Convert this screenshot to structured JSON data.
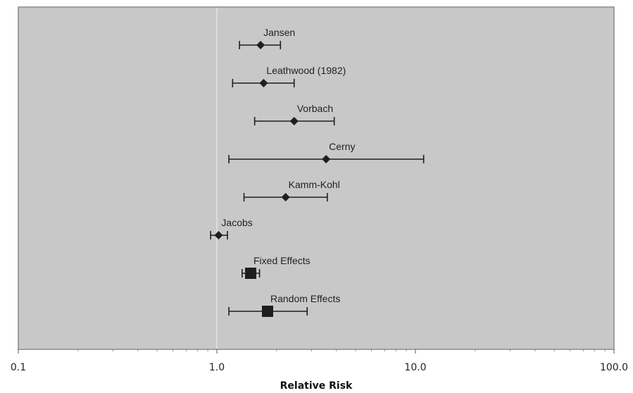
{
  "chart_data": {
    "type": "scatter",
    "subtype": "forest-plot",
    "x_scale": "log",
    "xlim": [
      0.1,
      100
    ],
    "xlabel": "Relative Risk",
    "ylabel": "",
    "title": "",
    "x_ticks": [
      {
        "value": 0.1,
        "label": "0.1"
      },
      {
        "value": 1,
        "label": "1.0"
      },
      {
        "value": 10,
        "label": "10.0"
      },
      {
        "value": 100,
        "label": "100.0"
      }
    ],
    "reference_line": 1.0,
    "studies": [
      {
        "label": "Jansen",
        "rr": 1.66,
        "ci_low": 1.3,
        "ci_high": 2.09,
        "marker": "diamond"
      },
      {
        "label": "Leathwood (1982)",
        "rr": 1.72,
        "ci_low": 1.2,
        "ci_high": 2.45,
        "marker": "diamond"
      },
      {
        "label": "Vorbach",
        "rr": 2.45,
        "ci_low": 1.55,
        "ci_high": 3.9,
        "marker": "diamond"
      },
      {
        "label": "Cerny",
        "rr": 3.55,
        "ci_low": 1.15,
        "ci_high": 11.0,
        "marker": "diamond"
      },
      {
        "label": "Kamm-Kohl",
        "rr": 2.22,
        "ci_low": 1.37,
        "ci_high": 3.6,
        "marker": "diamond"
      },
      {
        "label": "Jacobs",
        "rr": 1.02,
        "ci_low": 0.93,
        "ci_high": 1.13,
        "marker": "diamond"
      },
      {
        "label": "Fixed Effects",
        "rr": 1.48,
        "ci_low": 1.34,
        "ci_high": 1.64,
        "marker": "square"
      },
      {
        "label": "Random Effects",
        "rr": 1.8,
        "ci_low": 1.15,
        "ci_high": 2.85,
        "marker": "square"
      }
    ],
    "grid": false,
    "colors": {
      "plot_background": "#c8c8c8",
      "marker": "#1e1e1e",
      "reference_line": "#dcdcdc"
    }
  }
}
